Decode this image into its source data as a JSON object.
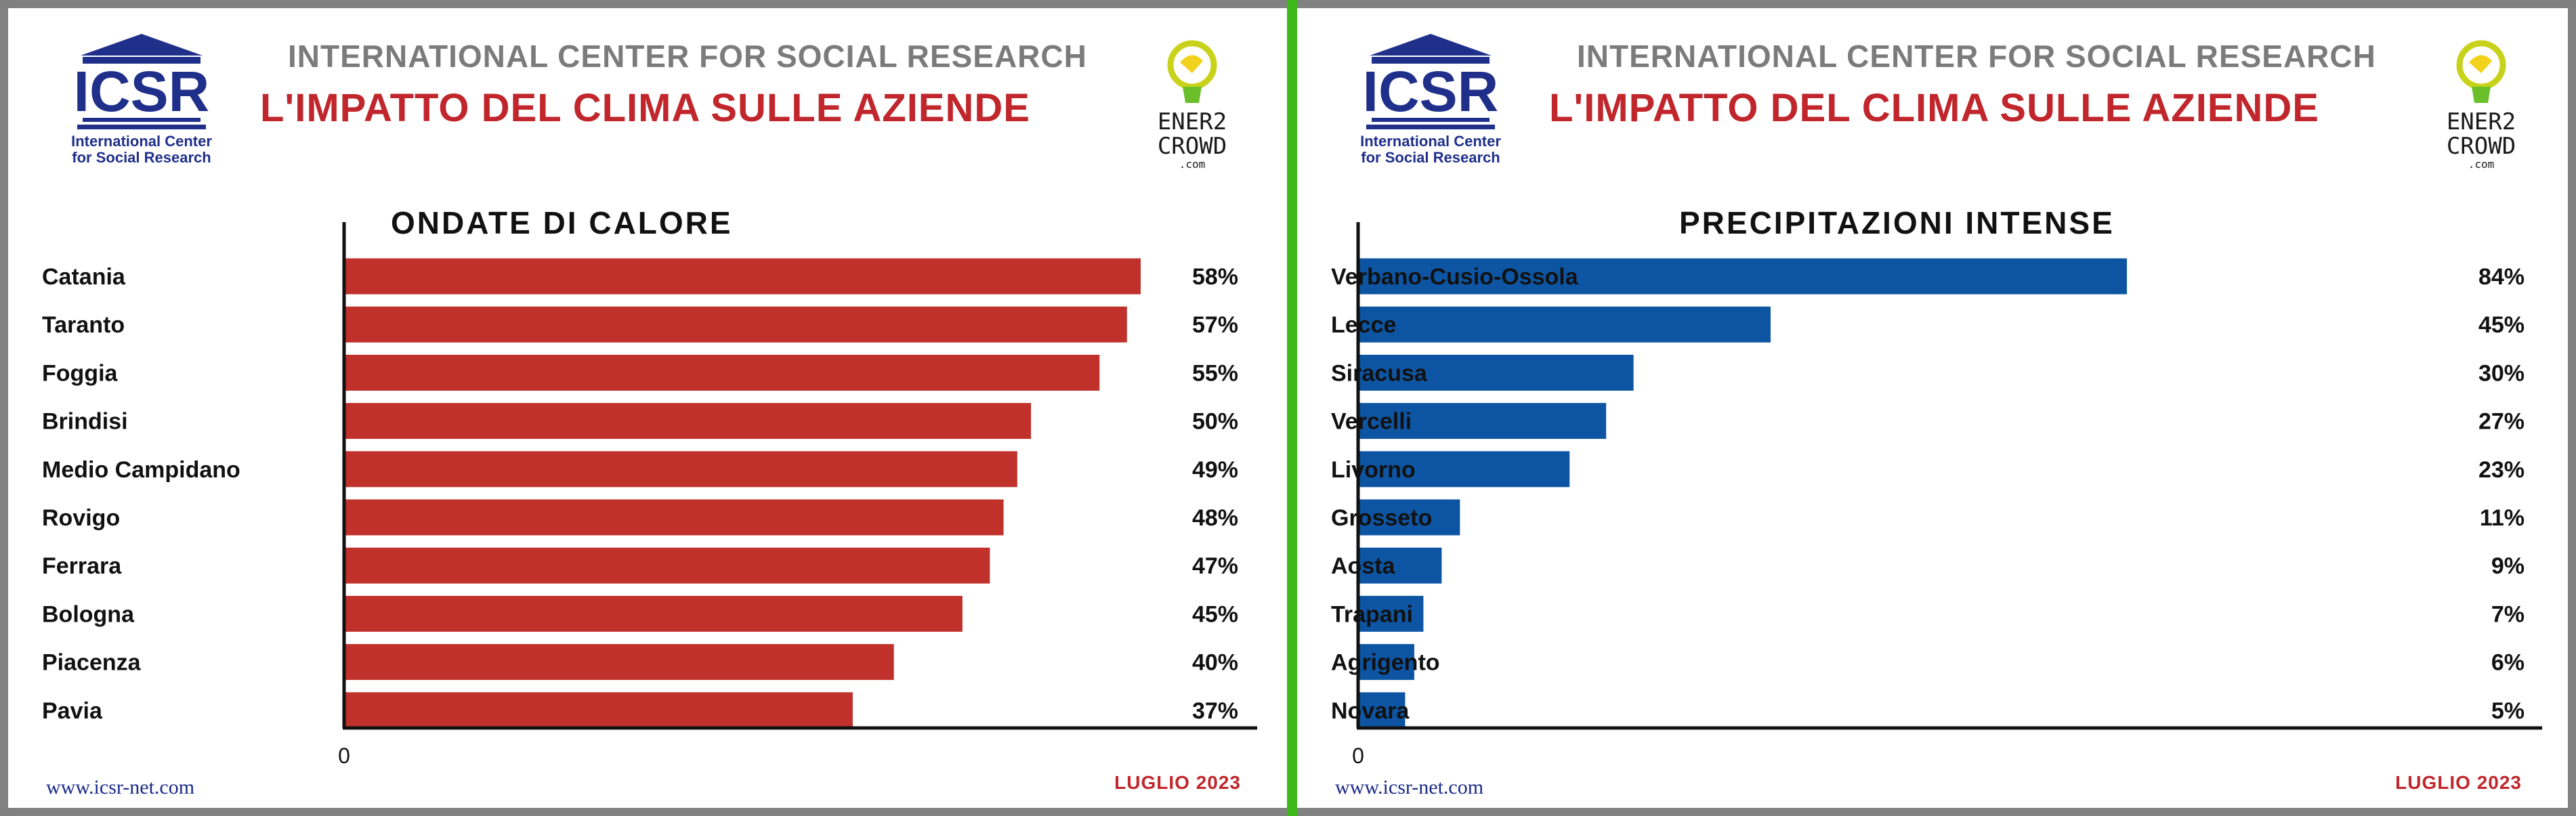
{
  "header": {
    "org_full": "INTERNATIONAL CENTER FOR SOCIAL RESEARCH",
    "headline": "L'IMPATTO DEL CLIMA SULLE AZIENDE",
    "logo_acronym": "ICSR",
    "logo_sub_line1": "International Center",
    "logo_sub_line2": "for Social Research",
    "partner_line1": "ENER2",
    "partner_line2": "CROWD",
    "partner_domain": ".com"
  },
  "footer": {
    "url": "www.icsr-net.com",
    "date": "LUGLIO 2023"
  },
  "colors": {
    "heat_bar": "#c0312b",
    "rain_bar": "#0d55a3",
    "headline": "#c0262b",
    "divider": "#3db81a"
  },
  "chart_data": [
    {
      "type": "bar",
      "orientation": "horizontal",
      "title": "ONDATE DI CALORE",
      "categories": [
        "Catania",
        "Taranto",
        "Foggia",
        "Brindisi",
        "Medio Campidano",
        "Rovigo",
        "Ferrara",
        "Bologna",
        "Piacenza",
        "Pavia"
      ],
      "values": [
        58,
        57,
        55,
        50,
        49,
        48,
        47,
        45,
        40,
        37
      ],
      "value_labels": [
        "58%",
        "57%",
        "55%",
        "50%",
        "49%",
        "48%",
        "47%",
        "45%",
        "40%",
        "37%"
      ],
      "xmin_label": "0",
      "xlim": [
        0,
        58
      ]
    },
    {
      "type": "bar",
      "orientation": "horizontal",
      "title": "PRECIPITAZIONI INTENSE",
      "categories": [
        "Verbano-Cusio-Ossola",
        "Lecce",
        "Siracusa",
        "Vercelli",
        "Livorno",
        "Grosseto",
        "Aosta",
        "Trapani",
        "Agrigento",
        "Novara"
      ],
      "values": [
        84,
        45,
        30,
        27,
        23,
        11,
        9,
        7,
        6,
        5
      ],
      "value_labels": [
        "84%",
        "45%",
        "30%",
        "27%",
        "23%",
        "11%",
        "9%",
        "7%",
        "6%",
        "5%"
      ],
      "xmin_label": "0",
      "xlim": [
        0,
        84
      ]
    }
  ]
}
